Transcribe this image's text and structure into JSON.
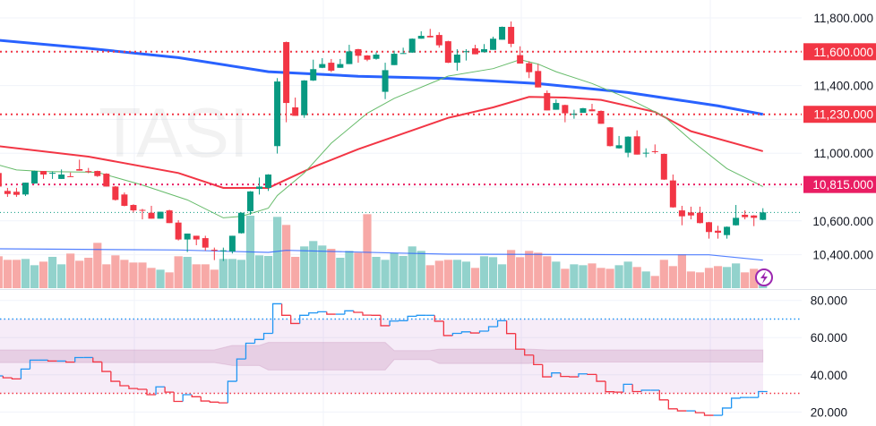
{
  "chart_data": {
    "type": "candlestick",
    "title": "TASI",
    "price_axis": {
      "ticks": [
        "11,800.000",
        "11,400.000",
        "11,000.000",
        "10,600.000",
        "10,400.000"
      ],
      "tick_values": [
        11800,
        11400,
        11000,
        10600,
        10400
      ],
      "grid_values": [
        11800,
        11600,
        11400,
        11200,
        11000,
        10800,
        10600,
        10400
      ],
      "range": [
        10300,
        11905
      ]
    },
    "price_levels": [
      {
        "value": 11600,
        "label": "11,600.000",
        "color": "#f23645"
      },
      {
        "value": 11230,
        "label": "11,230.000",
        "color": "#f23645"
      },
      {
        "value": 10815,
        "label": "10,815.000",
        "color": "#e91e63"
      }
    ],
    "last_price": 10650,
    "colors": {
      "up": "#089981",
      "down": "#f23645",
      "vol_up": "#92d2cc",
      "vol_down": "#f7a9a7",
      "ma_fast": "#66bb6a",
      "ma_mid": "#f23645",
      "ma_slow": "#2962ff",
      "rsi_up": "#2196f3",
      "rsi_down": "#f23645",
      "accent": "#9c27b0"
    },
    "candles_ohlc": [
      [
        10883,
        10892,
        10795,
        10803
      ],
      [
        10777,
        10795,
        10742,
        10759
      ],
      [
        10772,
        10795,
        10742,
        10754
      ],
      [
        10756,
        10826,
        10747,
        10826
      ],
      [
        10821,
        10897,
        10819,
        10895
      ],
      [
        10895,
        10895,
        10848,
        10874
      ],
      [
        10880,
        10892,
        10848,
        10884
      ],
      [
        10848,
        10904,
        10848,
        10874
      ],
      [
        10864,
        10886,
        10861,
        10861
      ],
      [
        10906,
        10962,
        10897,
        10897
      ],
      [
        10894,
        10913,
        10882,
        10890
      ],
      [
        10895,
        10897,
        10860,
        10865
      ],
      [
        10879,
        10882,
        10803,
        10803
      ],
      [
        10803,
        10806,
        10720,
        10724
      ],
      [
        10756,
        10768,
        10686,
        10689
      ],
      [
        10694,
        10698,
        10650,
        10662
      ],
      [
        10665,
        10671,
        10609,
        10662
      ],
      [
        10648,
        10689,
        10613,
        10613
      ],
      [
        10613,
        10654,
        10613,
        10654
      ],
      [
        10662,
        10666,
        10587,
        10587
      ],
      [
        10590,
        10604,
        10484,
        10490
      ],
      [
        10490,
        10525,
        10416,
        10525
      ],
      [
        10512,
        10512,
        10456,
        10490
      ],
      [
        10498,
        10512,
        10424,
        10442
      ],
      [
        10429,
        10442,
        10368,
        10426
      ],
      [
        10422,
        10442,
        10363,
        10426
      ],
      [
        10419,
        10512,
        10407,
        10512
      ],
      [
        10527,
        10650,
        10525,
        10648
      ],
      [
        10657,
        10776,
        10636,
        10774
      ],
      [
        10789,
        10856,
        10756,
        10803
      ],
      [
        10795,
        10876,
        10777,
        10874
      ],
      [
        11042,
        11444,
        10998,
        11424
      ],
      [
        11657,
        11660,
        11183,
        11297
      ],
      [
        11271,
        11329,
        11221,
        11221
      ],
      [
        11225,
        11432,
        11209,
        11430
      ],
      [
        11430,
        11553,
        11427,
        11497
      ],
      [
        11505,
        11562,
        11503,
        11527
      ],
      [
        11535,
        11557,
        11479,
        11488
      ],
      [
        11505,
        11557,
        11505,
        11527
      ],
      [
        11527,
        11641,
        11527,
        11602
      ],
      [
        11615,
        11617,
        11535,
        11576
      ],
      [
        11578,
        11580,
        11544,
        11553
      ],
      [
        11558,
        11597,
        11553,
        11583
      ],
      [
        11363,
        11535,
        11320,
        11491
      ],
      [
        11521,
        11606,
        11521,
        11588
      ],
      [
        11590,
        11624,
        11588,
        11592
      ],
      [
        11595,
        11679,
        11593,
        11677
      ],
      [
        11677,
        11721,
        11677,
        11694
      ],
      [
        11694,
        11735,
        11685,
        11685
      ],
      [
        11699,
        11715,
        11624,
        11638
      ],
      [
        11662,
        11665,
        11533,
        11535
      ],
      [
        11535,
        11615,
        11488,
        11583
      ],
      [
        11600,
        11615,
        11548,
        11603
      ],
      [
        11620,
        11641,
        11585,
        11585
      ],
      [
        11597,
        11645,
        11597,
        11615
      ],
      [
        11611,
        11689,
        11611,
        11677
      ],
      [
        11671,
        11749,
        11671,
        11747
      ],
      [
        11747,
        11779,
        11627,
        11647
      ],
      [
        11580,
        11632,
        11530,
        11530
      ],
      [
        11532,
        11544,
        11444,
        11479
      ],
      [
        11486,
        11527,
        11389,
        11389
      ],
      [
        11356,
        11371,
        11253,
        11253
      ],
      [
        11257,
        11318,
        11257,
        11297
      ],
      [
        11285,
        11287,
        11183,
        11236
      ],
      [
        11230,
        11257,
        11204,
        11233
      ],
      [
        11239,
        11268,
        11239,
        11266
      ],
      [
        11259,
        11292,
        11248,
        11248
      ],
      [
        11250,
        11253,
        11174,
        11174
      ],
      [
        11153,
        11155,
        11040,
        11042
      ],
      [
        11029,
        11102,
        11027,
        11047
      ],
      [
        11003,
        11100,
        10976,
        11098
      ],
      [
        11100,
        11135,
        10992,
        10992
      ],
      [
        10999,
        11029,
        10976,
        11003
      ],
      [
        11012,
        11052,
        10997,
        11008
      ],
      [
        10996,
        10998,
        10842,
        10844
      ],
      [
        10839,
        10874,
        10678,
        10680
      ],
      [
        10662,
        10689,
        10574,
        10627
      ],
      [
        10650,
        10684,
        10609,
        10632
      ],
      [
        10648,
        10684,
        10585,
        10587
      ],
      [
        10592,
        10594,
        10495,
        10534
      ],
      [
        10542,
        10571,
        10495,
        10530
      ],
      [
        10516,
        10567,
        10495,
        10565
      ],
      [
        10574,
        10694,
        10572,
        10618
      ],
      [
        10636,
        10662,
        10609,
        10622
      ],
      [
        10632,
        10634,
        10569,
        10618
      ],
      [
        10606,
        10675,
        10604,
        10650
      ]
    ],
    "volume_relative": [
      107,
      95,
      95,
      98,
      77,
      89,
      105,
      80,
      116,
      92,
      102,
      152,
      80,
      110,
      95,
      86,
      86,
      68,
      62,
      53,
      107,
      105,
      80,
      80,
      62,
      98,
      98,
      95,
      243,
      110,
      108,
      239,
      212,
      105,
      140,
      158,
      143,
      132,
      102,
      125,
      119,
      248,
      105,
      95,
      117,
      108,
      140,
      125,
      77,
      92,
      95,
      95,
      89,
      68,
      107,
      104,
      80,
      128,
      104,
      125,
      119,
      107,
      89,
      65,
      80,
      77,
      83,
      68,
      65,
      77,
      89,
      71,
      56,
      41,
      95,
      74,
      113,
      56,
      53,
      68,
      74,
      71,
      83,
      53,
      65,
      40
    ],
    "volume_ma": [
      [
        1,
        132
      ],
      [
        21,
        128
      ],
      [
        31,
        120
      ],
      [
        33,
        127
      ],
      [
        45,
        118
      ],
      [
        51,
        114
      ],
      [
        75,
        112
      ],
      [
        80,
        112
      ],
      [
        86,
        94
      ]
    ],
    "ma_slow": [
      [
        1,
        11668
      ],
      [
        11,
        11620
      ],
      [
        21,
        11565
      ],
      [
        31,
        11482
      ],
      [
        41,
        11455
      ],
      [
        51,
        11442
      ],
      [
        61,
        11412
      ],
      [
        71,
        11359
      ],
      [
        81,
        11280
      ],
      [
        86,
        11230
      ]
    ],
    "ma_mid": [
      [
        1,
        11042
      ],
      [
        11,
        10980
      ],
      [
        21,
        10883
      ],
      [
        26,
        10795
      ],
      [
        31,
        10795
      ],
      [
        36,
        10918
      ],
      [
        41,
        11024
      ],
      [
        51,
        11209
      ],
      [
        56,
        11271
      ],
      [
        60,
        11333
      ],
      [
        64,
        11329
      ],
      [
        68,
        11315
      ],
      [
        74,
        11244
      ],
      [
        78,
        11130
      ],
      [
        86,
        11012
      ]
    ],
    "ma_fast": [
      [
        1,
        10931
      ],
      [
        3,
        10901
      ],
      [
        6,
        10892
      ],
      [
        12,
        10887
      ],
      [
        17,
        10812
      ],
      [
        22,
        10724
      ],
      [
        26,
        10618
      ],
      [
        28,
        10627
      ],
      [
        31,
        10675
      ],
      [
        32,
        10750
      ],
      [
        35,
        10883
      ],
      [
        38,
        11059
      ],
      [
        42,
        11236
      ],
      [
        45,
        11324
      ],
      [
        51,
        11456
      ],
      [
        56,
        11500
      ],
      [
        59,
        11553
      ],
      [
        61,
        11527
      ],
      [
        63,
        11482
      ],
      [
        67,
        11412
      ],
      [
        71,
        11324
      ],
      [
        75,
        11218
      ],
      [
        78,
        11077
      ],
      [
        82,
        10909
      ],
      [
        86,
        10803
      ]
    ],
    "rsi": {
      "ticks": [
        "80.000",
        "60.000",
        "40.000",
        "20.000"
      ],
      "tick_values": [
        80,
        60,
        40,
        20
      ],
      "upper_level": 70,
      "lower_level": 30,
      "values": [
        39.4,
        38.4,
        37.8,
        43.1,
        47.9,
        47.9,
        47.4,
        47.4,
        46.8,
        49.3,
        49.3,
        46.9,
        41.8,
        36.5,
        34.1,
        32.6,
        32.2,
        29.3,
        33.5,
        30.7,
        25.7,
        29.3,
        28.2,
        25.9,
        25.3,
        24.9,
        36.5,
        48.5,
        57.0,
        59.0,
        62.3,
        78.2,
        72.0,
        67.6,
        72.0,
        73.3,
        73.9,
        72.6,
        72.6,
        74.4,
        73.6,
        72.1,
        72.0,
        66.4,
        68.9,
        69.1,
        71.5,
        72.0,
        72.0,
        68.8,
        61.1,
        62.3,
        63.1,
        62.5,
        63.5,
        65.9,
        69.1,
        62.2,
        53.8,
        50.6,
        45.5,
        38.9,
        41.0,
        39.1,
        38.9,
        40.5,
        40.2,
        36.5,
        30.9,
        30.7,
        34.9,
        31.0,
        31.7,
        31.7,
        26.5,
        21.7,
        20.6,
        20.6,
        19.6,
        18.2,
        18.2,
        22.1,
        27.4,
        27.8,
        27.8,
        31.0
      ],
      "band": [
        [
          1,
          53.4,
          46.6
        ],
        [
          25,
          53.4,
          46.6
        ],
        [
          27,
          55.8,
          45.0
        ],
        [
          30,
          55.8,
          45.0
        ],
        [
          31,
          57.4,
          42.6
        ],
        [
          44,
          57.4,
          42.6
        ],
        [
          45,
          53.0,
          48.2
        ],
        [
          49,
          53.0,
          48.2
        ],
        [
          50,
          53.8,
          46.1
        ],
        [
          60,
          53.8,
          46.1
        ],
        [
          62,
          53.4,
          46.9
        ],
        [
          86,
          53.4,
          46.9
        ]
      ]
    }
  }
}
